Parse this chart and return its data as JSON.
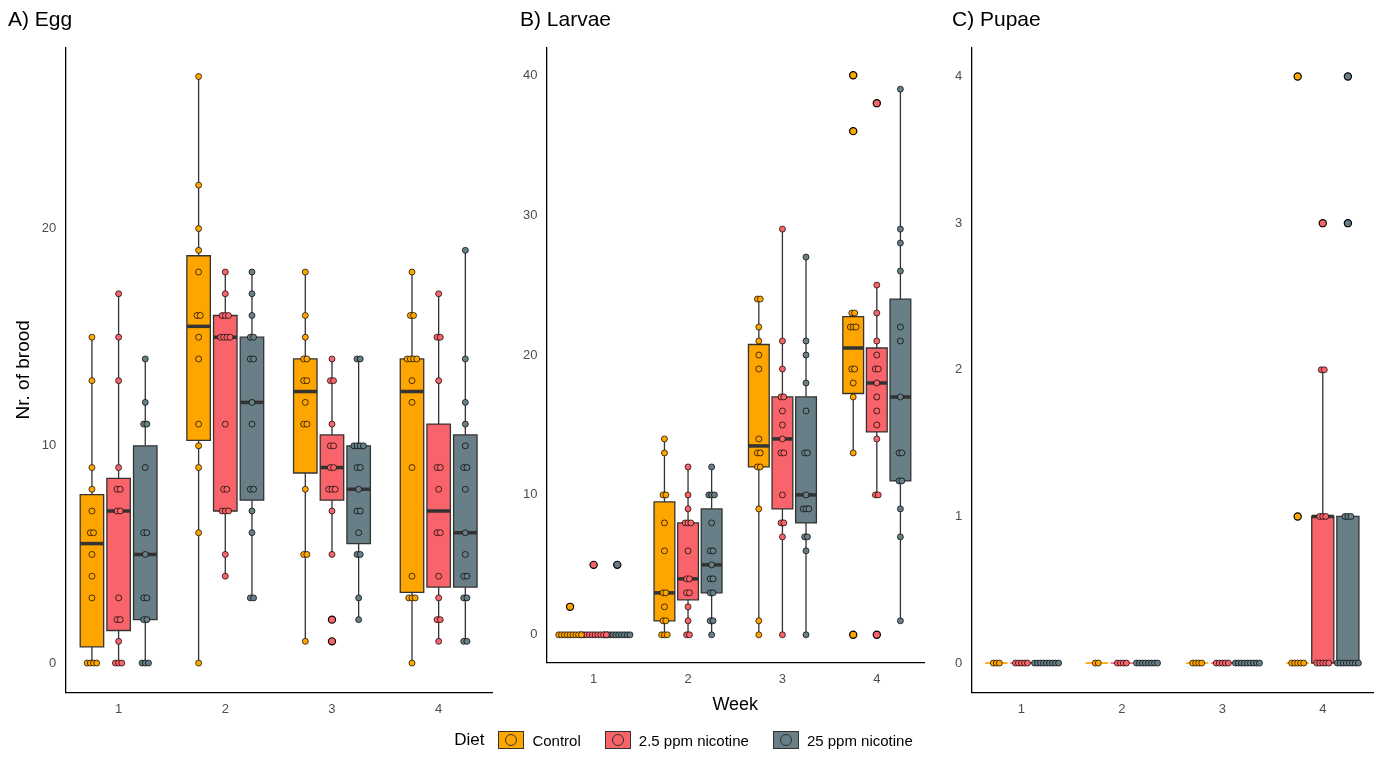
{
  "chart_data": [
    {
      "type": "box",
      "title": "A) Egg",
      "ylabel": "Nr. of brood",
      "categories": [
        "1",
        "2",
        "3",
        "4"
      ],
      "ylim": [
        -1.35,
        28.35
      ],
      "yticks": [
        0,
        10,
        20
      ],
      "series": [
        {
          "color": "#ffa500",
          "boxes": [
            {
              "low": 0,
              "q1": 0.75,
              "median": 5.5,
              "q3": 7.75,
              "high": 15
            },
            {
              "low": 0,
              "q1": 10.25,
              "median": 15.5,
              "q3": 18.75,
              "high": 27
            },
            {
              "low": 1,
              "q1": 8.75,
              "median": 12.5,
              "q3": 14,
              "high": 18
            },
            {
              "low": 0,
              "q1": 3.25,
              "median": 12.5,
              "q3": 14,
              "high": 18
            }
          ]
        },
        {
          "color": "#f8646a",
          "boxes": [
            {
              "low": 0,
              "q1": 1.5,
              "median": 7,
              "q3": 8.5,
              "high": 17
            },
            {
              "low": 4,
              "q1": 7,
              "median": 15,
              "q3": 16,
              "high": 18
            },
            {
              "low": 5,
              "q1": 7.5,
              "median": 9,
              "q3": 10.5,
              "high": 14,
              "outliers": [
                2,
                1
              ]
            },
            {
              "low": 1,
              "q1": 3.5,
              "median": 7,
              "q3": 11,
              "high": 17
            }
          ]
        },
        {
          "color": "#687f87",
          "boxes": [
            {
              "low": 0,
              "q1": 2,
              "median": 5,
              "q3": 10,
              "high": 14
            },
            {
              "low": 3,
              "q1": 7.5,
              "median": 12,
              "q3": 15,
              "high": 18
            },
            {
              "low": 2,
              "q1": 5.5,
              "median": 8,
              "q3": 10,
              "high": 14
            },
            {
              "low": 1,
              "q1": 3.5,
              "median": 6,
              "q3": 10.5,
              "high": 19
            }
          ]
        },
        {
          "type": "scatter",
          "color": "#ffa500",
          "x": [
            "1",
            "1",
            "1",
            "1",
            "1",
            "1",
            "1",
            "1",
            "1",
            "1",
            "1",
            "1",
            "1",
            "1",
            "2",
            "2",
            "2",
            "2",
            "2",
            "2",
            "2",
            "2",
            "2",
            "2",
            "2",
            "2",
            "2",
            "2",
            "3",
            "3",
            "3",
            "3",
            "3",
            "3",
            "3",
            "3",
            "3",
            "3",
            "3",
            "3",
            "3",
            "3",
            "4",
            "4",
            "4",
            "4",
            "4",
            "4",
            "4",
            "4",
            "4",
            "4",
            "4",
            "4",
            "4",
            "4",
            "4"
          ],
          "values": [
            15,
            13,
            9,
            8,
            7,
            6,
            6,
            5,
            4,
            3,
            0,
            0,
            0,
            0,
            27,
            22,
            20,
            19,
            18,
            16,
            16,
            15,
            14,
            11,
            10,
            9,
            6,
            0,
            18,
            16,
            15,
            14,
            14,
            13,
            13,
            12,
            11,
            11,
            8,
            5,
            5,
            1,
            18,
            16,
            16,
            14,
            14,
            14,
            14,
            13,
            12,
            9,
            4,
            3,
            3,
            3,
            0
          ]
        },
        {
          "type": "scatter",
          "color": "#f8646a",
          "x": [
            "1",
            "1",
            "1",
            "1",
            "1",
            "1",
            "1",
            "1",
            "1",
            "1",
            "1",
            "1",
            "1",
            "1",
            "1",
            "2",
            "2",
            "2",
            "2",
            "2",
            "2",
            "2",
            "2",
            "2",
            "2",
            "2",
            "2",
            "2",
            "2",
            "2",
            "2",
            "2",
            "3",
            "3",
            "3",
            "3",
            "3",
            "3",
            "3",
            "3",
            "3",
            "3",
            "3",
            "3",
            "3",
            "4",
            "4",
            "4",
            "4",
            "4",
            "4",
            "4",
            "4",
            "4",
            "4",
            "4",
            "4",
            "4",
            "4"
          ],
          "values": [
            17,
            15,
            13,
            9,
            8,
            8,
            7,
            7,
            3,
            2,
            2,
            1,
            0,
            0,
            0,
            18,
            17,
            16,
            16,
            16,
            15,
            15,
            15,
            15,
            11,
            8,
            8,
            7,
            7,
            7,
            5,
            4,
            14,
            13,
            13,
            11,
            10,
            10,
            9,
            9,
            8,
            8,
            8,
            7,
            5,
            17,
            15,
            15,
            13,
            9,
            9,
            8,
            6,
            6,
            4,
            3,
            2,
            2,
            1
          ]
        },
        {
          "type": "scatter",
          "color": "#687f87",
          "x": [
            "1",
            "1",
            "1",
            "1",
            "1",
            "1",
            "1",
            "1",
            "1",
            "1",
            "1",
            "1",
            "1",
            "1",
            "1",
            "2",
            "2",
            "2",
            "2",
            "2",
            "2",
            "2",
            "2",
            "2",
            "2",
            "2",
            "2",
            "2",
            "2",
            "2",
            "3",
            "3",
            "3",
            "3",
            "3",
            "3",
            "3",
            "3",
            "3",
            "3",
            "3",
            "3",
            "3",
            "3",
            "3",
            "3",
            "4",
            "4",
            "4",
            "4",
            "4",
            "4",
            "4",
            "4",
            "4",
            "4",
            "4",
            "4",
            "4",
            "4",
            "4",
            "4"
          ],
          "values": [
            14,
            12,
            11,
            11,
            9,
            6,
            6,
            5,
            3,
            3,
            2,
            2,
            0,
            0,
            0,
            18,
            17,
            16,
            15,
            15,
            14,
            14,
            12,
            11,
            8,
            8,
            7,
            6,
            3,
            3,
            14,
            14,
            10,
            10,
            10,
            10,
            9,
            9,
            8,
            7,
            7,
            6,
            5,
            5,
            3,
            2,
            19,
            14,
            12,
            11,
            10,
            9,
            9,
            8,
            6,
            5,
            4,
            4,
            3,
            3,
            1,
            1
          ]
        }
      ]
    },
    {
      "type": "box",
      "title": "B) Larvae",
      "xlabel": "Week",
      "legend": "bottom",
      "legend_title": "Diet",
      "categories": [
        "1",
        "2",
        "3",
        "4"
      ],
      "ylim": [
        -2,
        42
      ],
      "yticks": [
        0,
        10,
        20,
        30,
        40
      ],
      "series": [
        {
          "name": "Control",
          "color": "#ffa500",
          "boxes": [
            {
              "low": 0,
              "q1": 0,
              "median": 0,
              "q3": 0,
              "high": 0,
              "outliers": [
                2
              ]
            },
            {
              "low": 0,
              "q1": 1,
              "median": 3,
              "q3": 9.5,
              "high": 14
            },
            {
              "low": 0,
              "q1": 12,
              "median": 13.5,
              "q3": 20.75,
              "high": 24
            },
            {
              "low": 13,
              "q1": 17.25,
              "median": 20.5,
              "q3": 22.75,
              "high": 23,
              "outliers": [
                40,
                36,
                0
              ]
            }
          ]
        },
        {
          "name": "2.5 ppm nicotine",
          "color": "#f8646a",
          "boxes": [
            {
              "low": 0,
              "q1": 0,
              "median": 0,
              "q3": 0,
              "high": 0,
              "outliers": [
                5
              ]
            },
            {
              "low": 0,
              "q1": 2.5,
              "median": 4,
              "q3": 8,
              "high": 12
            },
            {
              "low": 0,
              "q1": 9,
              "median": 14,
              "q3": 17,
              "high": 29
            },
            {
              "low": 10,
              "q1": 14.5,
              "median": 18,
              "q3": 20.5,
              "high": 25,
              "outliers": [
                38,
                0
              ]
            }
          ]
        },
        {
          "name": "25 ppm nicotine",
          "color": "#687f87",
          "boxes": [
            {
              "low": 0,
              "q1": 0,
              "median": 0,
              "q3": 0,
              "high": 0,
              "outliers": [
                5
              ]
            },
            {
              "low": 0,
              "q1": 3,
              "median": 5,
              "q3": 9,
              "high": 12
            },
            {
              "low": 0,
              "q1": 8,
              "median": 10,
              "q3": 17,
              "high": 27
            },
            {
              "low": 1,
              "q1": 11,
              "median": 17,
              "q3": 24,
              "high": 39
            }
          ]
        },
        {
          "type": "scatter",
          "color": "#ffa500",
          "x": [
            "1",
            "1",
            "1",
            "1",
            "1",
            "1",
            "1",
            "1",
            "1",
            "2",
            "2",
            "2",
            "2",
            "2",
            "2",
            "2",
            "2",
            "2",
            "2",
            "2",
            "2",
            "2",
            "2",
            "3",
            "3",
            "3",
            "3",
            "3",
            "3",
            "3",
            "3",
            "3",
            "3",
            "3",
            "3",
            "3",
            "3",
            "4",
            "4",
            "4",
            "4",
            "4",
            "4",
            "4",
            "4",
            "4",
            "4"
          ],
          "values": [
            0,
            0,
            0,
            0,
            0,
            0,
            0,
            0,
            0,
            14,
            13,
            10,
            10,
            8,
            6,
            3,
            3,
            2,
            1,
            1,
            0,
            0,
            0,
            24,
            24,
            22,
            21,
            20,
            19,
            14,
            13,
            13,
            12,
            12,
            9,
            1,
            0,
            23,
            23,
            22,
            22,
            22,
            19,
            19,
            18,
            17,
            13
          ]
        },
        {
          "type": "scatter",
          "color": "#f8646a",
          "x": [
            "1",
            "1",
            "1",
            "1",
            "1",
            "1",
            "1",
            "1",
            "1",
            "1",
            "2",
            "2",
            "2",
            "2",
            "2",
            "2",
            "2",
            "2",
            "2",
            "2",
            "2",
            "2",
            "2",
            "2",
            "2",
            "3",
            "3",
            "3",
            "3",
            "3",
            "3",
            "3",
            "3",
            "3",
            "3",
            "3",
            "3",
            "3",
            "3",
            "3",
            "4",
            "4",
            "4",
            "4",
            "4",
            "4",
            "4",
            "4",
            "4",
            "4",
            "4",
            "4",
            "4"
          ],
          "values": [
            0,
            0,
            0,
            0,
            0,
            0,
            0,
            0,
            0,
            0,
            12,
            10,
            9,
            8,
            8,
            8,
            6,
            4,
            4,
            3,
            3,
            2,
            1,
            0,
            0,
            29,
            21,
            19,
            17,
            17,
            16,
            15,
            14,
            13,
            13,
            10,
            8,
            8,
            7,
            0,
            25,
            23,
            21,
            20,
            19,
            19,
            18,
            17,
            16,
            15,
            14,
            10,
            10
          ]
        },
        {
          "type": "scatter",
          "color": "#687f87",
          "x": [
            "1",
            "1",
            "1",
            "1",
            "1",
            "1",
            "1",
            "1",
            "1",
            "1",
            "2",
            "2",
            "2",
            "2",
            "2",
            "2",
            "2",
            "2",
            "2",
            "2",
            "2",
            "2",
            "2",
            "2",
            "2",
            "3",
            "3",
            "3",
            "3",
            "3",
            "3",
            "3",
            "3",
            "3",
            "3",
            "3",
            "3",
            "3",
            "3",
            "3",
            "4",
            "4",
            "4",
            "4",
            "4",
            "4",
            "4",
            "4",
            "4",
            "4",
            "4",
            "4",
            "4",
            "4"
          ],
          "values": [
            0,
            0,
            0,
            0,
            0,
            0,
            0,
            0,
            0,
            0,
            12,
            10,
            10,
            10,
            8,
            6,
            6,
            5,
            4,
            4,
            3,
            3,
            1,
            1,
            0,
            27,
            21,
            20,
            18,
            16,
            13,
            13,
            10,
            9,
            9,
            9,
            7,
            7,
            6,
            0,
            39,
            29,
            28,
            26,
            22,
            21,
            17,
            13,
            13,
            11,
            11,
            9,
            7,
            1
          ]
        }
      ]
    },
    {
      "type": "box",
      "title": "C) Pupae",
      "categories": [
        "1",
        "2",
        "3",
        "4"
      ],
      "ylim": [
        -0.2,
        4.2
      ],
      "yticks": [
        0,
        1,
        2,
        3,
        4
      ],
      "series": [
        {
          "color": "#ffa500",
          "boxes": [
            {
              "low": 0,
              "q1": 0,
              "median": 0,
              "q3": 0,
              "high": 0
            },
            {
              "low": 0,
              "q1": 0,
              "median": 0,
              "q3": 0,
              "high": 0
            },
            {
              "low": 0,
              "q1": 0,
              "median": 0,
              "q3": 0,
              "high": 0
            },
            {
              "low": 0,
              "q1": 0,
              "median": 0,
              "q3": 0,
              "high": 0,
              "outliers": [
                4,
                1
              ]
            }
          ]
        },
        {
          "color": "#f8646a",
          "boxes": [
            {
              "low": 0,
              "q1": 0,
              "median": 0,
              "q3": 0,
              "high": 0
            },
            {
              "low": 0,
              "q1": 0,
              "median": 0,
              "q3": 0,
              "high": 0
            },
            {
              "low": 0,
              "q1": 0,
              "median": 0,
              "q3": 0,
              "high": 0
            },
            {
              "low": 0,
              "q1": 0,
              "median": 1,
              "q3": 1,
              "high": 2,
              "outliers": [
                3
              ]
            }
          ]
        },
        {
          "color": "#687f87",
          "boxes": [
            {
              "low": 0,
              "q1": 0,
              "median": 0,
              "q3": 0,
              "high": 0
            },
            {
              "low": 0,
              "q1": 0,
              "median": 0,
              "q3": 0,
              "high": 0
            },
            {
              "low": 0,
              "q1": 0,
              "median": 0,
              "q3": 0,
              "high": 0
            },
            {
              "low": 0,
              "q1": 0,
              "median": 0,
              "q3": 1,
              "high": 1,
              "outliers": [
                4,
                3
              ]
            }
          ]
        },
        {
          "type": "scatter",
          "color": "#ffa500",
          "x": [
            "1",
            "1",
            "1",
            "2",
            "2",
            "3",
            "3",
            "3",
            "3",
            "4",
            "4",
            "4",
            "4",
            "4"
          ],
          "values": [
            0,
            0,
            0,
            0,
            0,
            0,
            0,
            0,
            0,
            0,
            0,
            0,
            0,
            0
          ]
        },
        {
          "type": "scatter",
          "color": "#f8646a",
          "x": [
            "1",
            "1",
            "1",
            "1",
            "1",
            "2",
            "2",
            "2",
            "2",
            "3",
            "3",
            "3",
            "3",
            "3",
            "4",
            "4",
            "4",
            "4",
            "4",
            "4",
            "4",
            "4",
            "4",
            "4"
          ],
          "values": [
            0,
            0,
            0,
            0,
            0,
            0,
            0,
            0,
            0,
            0,
            0,
            0,
            0,
            0,
            2,
            2,
            1,
            1,
            1,
            0,
            0,
            0,
            0,
            0
          ]
        },
        {
          "type": "scatter",
          "color": "#687f87",
          "x": [
            "1",
            "1",
            "1",
            "1",
            "1",
            "1",
            "1",
            "1",
            "1",
            "2",
            "2",
            "2",
            "2",
            "2",
            "2",
            "2",
            "2",
            "3",
            "3",
            "3",
            "3",
            "3",
            "3",
            "3",
            "3",
            "3",
            "4",
            "4",
            "4",
            "4",
            "4",
            "4",
            "4",
            "4",
            "4",
            "4",
            "4"
          ],
          "values": [
            0,
            0,
            0,
            0,
            0,
            0,
            0,
            0,
            0,
            0,
            0,
            0,
            0,
            0,
            0,
            0,
            0,
            0,
            0,
            0,
            0,
            0,
            0,
            0,
            0,
            0,
            1,
            1,
            1,
            0,
            0,
            0,
            0,
            0,
            0,
            0,
            0
          ]
        }
      ]
    }
  ]
}
